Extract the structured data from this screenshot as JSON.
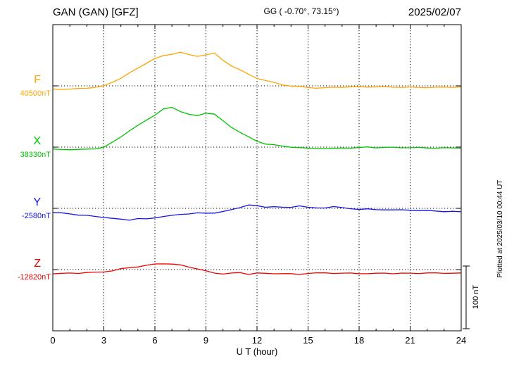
{
  "chart_data": {
    "type": "line",
    "title": "GAN (GAN)  [GFZ]",
    "subtitle": "GG ( -0.70°,  73.15°)",
    "date": "2025/02/07",
    "xlabel": "U T (hour)",
    "x_unit": "hour",
    "xlim": [
      0,
      24
    ],
    "x_ticks": [
      0,
      3,
      6,
      9,
      12,
      15,
      18,
      21,
      24
    ],
    "grid": true,
    "x_step_hours": 0.5,
    "scale_bar": {
      "label": "100 nT",
      "nT": 100
    },
    "plotted_note": "Plotted at 2025/03/10 00:44 UT",
    "series": [
      {
        "name": "F",
        "baseline_label": "40500nT",
        "baseline_nT": 40500,
        "color": "#FFA500",
        "values_offset_nT": [
          -5,
          -5,
          -5,
          -4,
          -3,
          -2,
          0,
          6,
          12,
          20,
          28,
          36,
          43,
          48,
          51,
          54,
          50,
          48,
          50,
          52,
          41,
          32,
          25,
          18,
          12,
          8,
          5,
          2,
          0,
          -1,
          -2,
          -3,
          -3,
          -2,
          -2,
          -2,
          -2,
          -2,
          -2,
          -2,
          -2,
          -2,
          -2,
          -2,
          -2,
          -2,
          -2,
          -2,
          -2
        ]
      },
      {
        "name": "X",
        "baseline_label": "38330nT",
        "baseline_nT": 38330,
        "color": "#00C300",
        "values_offset_nT": [
          -4,
          -4,
          -4,
          -4,
          -3,
          -2,
          0,
          8,
          17,
          26,
          34,
          43,
          51,
          60,
          63,
          57,
          52,
          50,
          55,
          53,
          42,
          32,
          24,
          16,
          9,
          5,
          3,
          1,
          0,
          -1,
          -2,
          -2,
          -2,
          -2,
          -1,
          -1,
          -1,
          0,
          -1,
          -1,
          -1,
          -1,
          -1,
          -1,
          -1,
          -1,
          -1,
          -1,
          -1
        ]
      },
      {
        "name": "Y",
        "baseline_label": "-2580nT",
        "baseline_nT": -2580,
        "color": "#1414E6",
        "values_offset_nT": [
          -7,
          -8,
          -9,
          -11,
          -12,
          -13,
          -14,
          -16,
          -17,
          -18,
          -16,
          -17,
          -15,
          -13,
          -12,
          -10,
          -9,
          -8,
          -8,
          -7,
          -5,
          -2,
          2,
          6,
          4,
          2,
          3,
          1,
          1,
          4,
          1,
          0,
          1,
          3,
          1,
          0,
          -1,
          -1,
          -2,
          -2,
          -3,
          -3,
          -3,
          -4,
          -4,
          -4,
          -5,
          -5,
          -5
        ]
      },
      {
        "name": "Z",
        "baseline_label": "-12820nT",
        "baseline_nT": -12820,
        "color": "#F00000",
        "values_offset_nT": [
          -6,
          -6,
          -6,
          -6,
          -5,
          -5,
          -4,
          -2,
          1,
          3,
          5,
          7,
          9,
          10,
          9,
          7,
          4,
          1,
          -3,
          -6,
          -7,
          -6,
          -5,
          -7,
          -5,
          -6,
          -6,
          -6,
          -7,
          -8,
          -6,
          -6,
          -6,
          -6,
          -6,
          -6,
          -6,
          -6,
          -6,
          -5,
          -6,
          -6,
          -6,
          -6,
          -6,
          -6,
          -6,
          -6,
          -6
        ]
      }
    ]
  }
}
